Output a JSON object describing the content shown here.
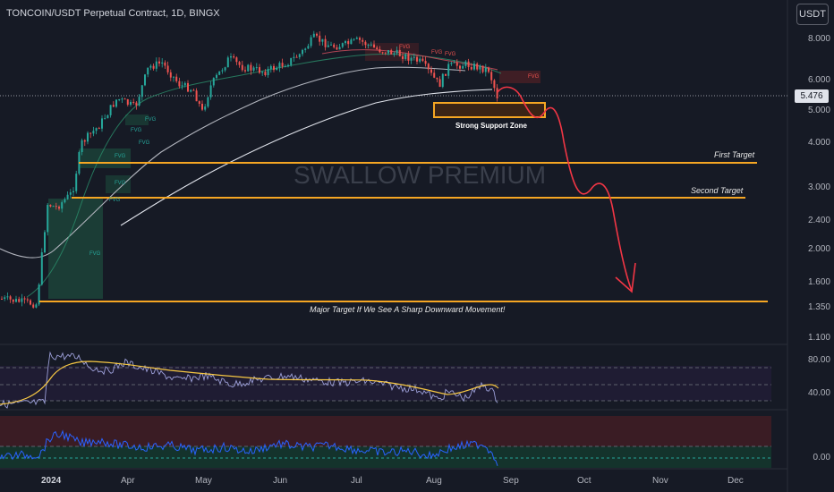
{
  "header": {
    "symbol_title": "TONCOIN/USDT Perpetual Contract, 1D, BINGX",
    "currency_button": "USDT"
  },
  "watermark": "SWALLOW PREMIUM",
  "price_axis": {
    "labels": [
      "8.000",
      "6.000",
      "5.000",
      "4.000",
      "3.000",
      "2.400",
      "2.000",
      "1.600",
      "1.350",
      "1.100"
    ],
    "current_price": "5.476"
  },
  "rsi_axis": {
    "labels": [
      "80.00",
      "40.00"
    ]
  },
  "osc_axis": {
    "labels": [
      "0.00"
    ]
  },
  "time_axis": {
    "labels": [
      "2024",
      "Apr",
      "May",
      "Jun",
      "Jul",
      "Aug",
      "Sep",
      "Oct",
      "Nov",
      "Dec"
    ]
  },
  "annotations": {
    "first_target": "First Target",
    "second_target": "Second Target",
    "major_target": "Major Target If We See A Sharp Downward Movement!",
    "support_zone": "Strong Support Zone",
    "fvg_label": "FVG"
  },
  "colors": {
    "background": "#161a25",
    "up_candle": "#26a69a",
    "down_candle": "#ef5350",
    "target_line": "#f5a623",
    "projection": "#f23645",
    "rsi_line": "#9c9fd8",
    "rsi_ma": "#f7c843",
    "osc_line": "#2962ff"
  }
}
